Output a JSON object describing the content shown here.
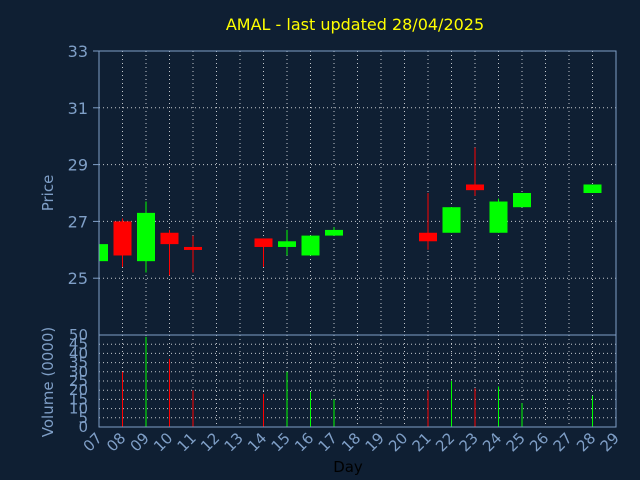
{
  "chart_data": {
    "type": "candlestick",
    "title": "AMAL - last updated 28/04/2025",
    "xlabel": "Day",
    "price_axis": {
      "label": "Price",
      "ylim": [
        23,
        33
      ],
      "ticks": [
        "33",
        "31",
        "29",
        "27",
        "25"
      ]
    },
    "volume_axis": {
      "label": "Volume (0000)",
      "ylim": [
        0,
        50
      ],
      "ticks": [
        "50",
        "45",
        "40",
        "35",
        "30",
        "25",
        "20",
        "15",
        "10",
        "5",
        "0"
      ]
    },
    "x_ticks": [
      "07",
      "08",
      "09",
      "10",
      "11",
      "12",
      "13",
      "14",
      "15",
      "16",
      "17",
      "18",
      "19",
      "20",
      "21",
      "22",
      "23",
      "24",
      "25",
      "26",
      "27",
      "28",
      "29"
    ],
    "grid": true,
    "colors": {
      "background": "#0f1f33",
      "axis": "#7f9fc7",
      "grid": "#ffffff",
      "title": "#ffff00",
      "up": "#00ff00",
      "down": "#ff0000"
    },
    "candles": [
      {
        "day": "07",
        "open": 25.6,
        "high": 26.2,
        "low": 25.6,
        "close": 26.2,
        "volume": 0
      },
      {
        "day": "08",
        "open": 27.0,
        "high": 27.1,
        "low": 25.4,
        "close": 25.8,
        "volume": 30
      },
      {
        "day": "09",
        "open": 25.6,
        "high": 27.7,
        "low": 25.2,
        "close": 27.3,
        "volume": 49
      },
      {
        "day": "10",
        "open": 26.6,
        "high": 26.7,
        "low": 25.1,
        "close": 26.2,
        "volume": 37
      },
      {
        "day": "11",
        "open": 26.1,
        "high": 26.5,
        "low": 25.2,
        "close": 26.0,
        "volume": 20
      },
      {
        "day": "14",
        "open": 26.4,
        "high": 26.4,
        "low": 25.4,
        "close": 26.1,
        "volume": 18
      },
      {
        "day": "15",
        "open": 26.1,
        "high": 26.7,
        "low": 25.8,
        "close": 26.3,
        "volume": 30
      },
      {
        "day": "16",
        "open": 25.8,
        "high": 26.5,
        "low": 25.8,
        "close": 26.5,
        "volume": 19
      },
      {
        "day": "17",
        "open": 26.5,
        "high": 26.8,
        "low": 26.5,
        "close": 26.7,
        "volume": 15
      },
      {
        "day": "21",
        "open": 26.6,
        "high": 28.0,
        "low": 26.0,
        "close": 26.3,
        "volume": 20
      },
      {
        "day": "22",
        "open": 26.6,
        "high": 27.5,
        "low": 26.6,
        "close": 27.5,
        "volume": 25
      },
      {
        "day": "23",
        "open": 28.3,
        "high": 29.6,
        "low": 27.9,
        "close": 28.1,
        "volume": 21
      },
      {
        "day": "24",
        "open": 26.6,
        "high": 27.8,
        "low": 26.6,
        "close": 27.7,
        "volume": 22
      },
      {
        "day": "25",
        "open": 27.5,
        "high": 28.0,
        "low": 27.5,
        "close": 28.0,
        "volume": 13
      },
      {
        "day": "28",
        "open": 28.0,
        "high": 28.3,
        "low": 28.0,
        "close": 28.3,
        "volume": 17
      }
    ]
  }
}
